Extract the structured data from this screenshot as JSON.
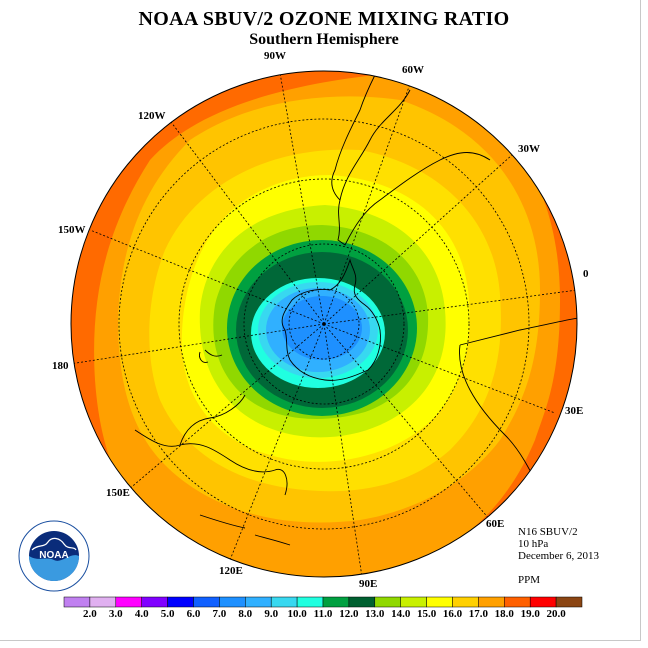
{
  "title": "NOAA SBUV/2 OZONE MIXING RATIO",
  "subtitle": "Southern Hemisphere",
  "longitude_labels": [
    "90W",
    "60W",
    "30W",
    "0",
    "30E",
    "60E",
    "90E",
    "120E",
    "150E",
    "180",
    "150W",
    "120W"
  ],
  "info": {
    "instrument": "N16 SBUV/2",
    "pressure_level": "10 hPa",
    "date": "December 6, 2013",
    "units": "PPM"
  },
  "colorbar": {
    "ticks": [
      "2.0",
      "3.0",
      "4.0",
      "5.0",
      "6.0",
      "7.0",
      "8.0",
      "9.0",
      "10.0",
      "11.0",
      "12.0",
      "13.0",
      "14.0",
      "15.0",
      "16.0",
      "17.0",
      "18.0",
      "19.0",
      "20.0"
    ],
    "colors": [
      "#c080f0",
      "#e0b0f0",
      "#ff00ff",
      "#8000ff",
      "#0000ff",
      "#1060ff",
      "#1e90ff",
      "#30b0ff",
      "#38d8f0",
      "#20ffe0",
      "#00a040",
      "#006030",
      "#90d800",
      "#c8f000",
      "#ffff00",
      "#ffd000",
      "#ffa000",
      "#ff6000",
      "#ff0000",
      "#8b4513"
    ]
  },
  "logo": {
    "name": "NOAA",
    "ring_text": "NATIONAL OCEANIC AND ATMOSPHERIC ADMINISTRATION · U.S. DEPARTMENT OF COMMERCE"
  }
}
